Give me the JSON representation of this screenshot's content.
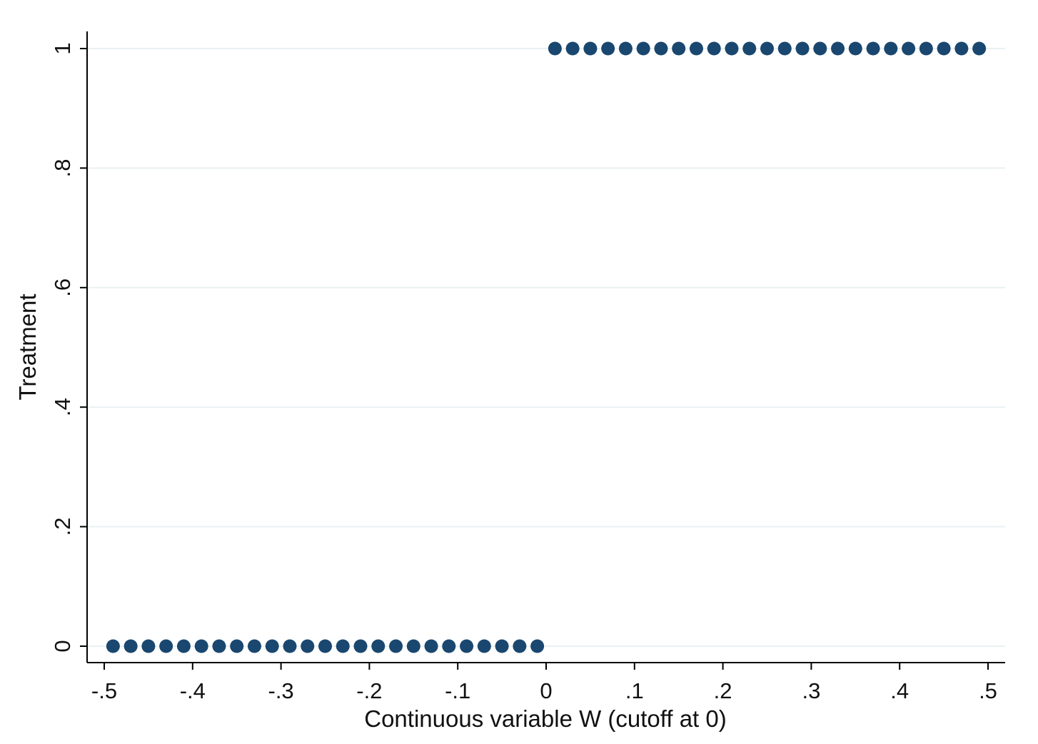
{
  "chart_data": {
    "type": "scatter",
    "title": "",
    "xlabel": "Continuous variable W (cutoff at 0)",
    "ylabel": "Treatment",
    "xlim": [
      -0.5,
      0.5
    ],
    "ylim": [
      0,
      1
    ],
    "xticks": [
      -0.5,
      -0.4,
      -0.3,
      -0.2,
      -0.1,
      0,
      0.1,
      0.2,
      0.3,
      0.4,
      0.5
    ],
    "xtick_labels": [
      "-.5",
      "-.4",
      "-.3",
      "-.2",
      "-.1",
      "0",
      ".1",
      ".2",
      ".3",
      ".4",
      ".5"
    ],
    "yticks": [
      0,
      0.2,
      0.4,
      0.6,
      0.8,
      1
    ],
    "ytick_labels": [
      "0",
      ".2",
      ".4",
      ".6",
      ".8",
      "1"
    ],
    "grid": true,
    "marker_color": "#1a476f",
    "grid_color": "#e9f1f2",
    "series": [
      {
        "x": [
          -0.49,
          -0.47,
          -0.45,
          -0.43,
          -0.41,
          -0.39,
          -0.37,
          -0.35,
          -0.33,
          -0.31,
          -0.29,
          -0.27,
          -0.25,
          -0.23,
          -0.21,
          -0.19,
          -0.17,
          -0.15,
          -0.13,
          -0.11,
          -0.09,
          -0.07,
          -0.05,
          -0.03,
          -0.01
        ],
        "y": [
          0,
          0,
          0,
          0,
          0,
          0,
          0,
          0,
          0,
          0,
          0,
          0,
          0,
          0,
          0,
          0,
          0,
          0,
          0,
          0,
          0,
          0,
          0,
          0,
          0
        ]
      },
      {
        "x": [
          0.01,
          0.03,
          0.05,
          0.07,
          0.09,
          0.11,
          0.13,
          0.15,
          0.17,
          0.19,
          0.21,
          0.23,
          0.25,
          0.27,
          0.29,
          0.31,
          0.33,
          0.35,
          0.37,
          0.39,
          0.41,
          0.43,
          0.45,
          0.47,
          0.49
        ],
        "y": [
          1,
          1,
          1,
          1,
          1,
          1,
          1,
          1,
          1,
          1,
          1,
          1,
          1,
          1,
          1,
          1,
          1,
          1,
          1,
          1,
          1,
          1,
          1,
          1,
          1
        ]
      }
    ]
  }
}
